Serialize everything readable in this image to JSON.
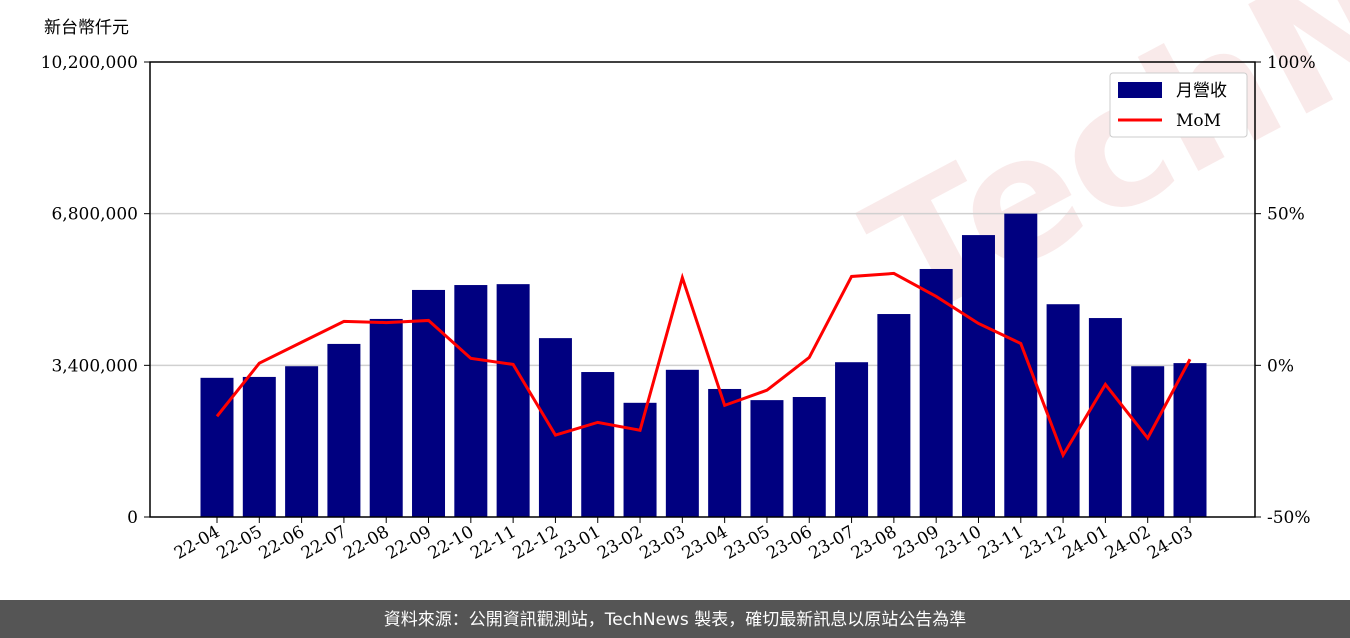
{
  "chart_data": {
    "type": "bar_line",
    "y_label": "新台幣仟元",
    "watermark": "TechNews",
    "footer": "資料來源：公開資訊觀測站，TechNews 製表，確切最新訊息以原站公告為準",
    "categories": [
      "22-04",
      "22-05",
      "22-06",
      "22-07",
      "22-08",
      "22-09",
      "22-10",
      "22-11",
      "22-12",
      "23-01",
      "23-02",
      "23-03",
      "23-04",
      "23-05",
      "23-06",
      "23-07",
      "23-08",
      "23-09",
      "23-10",
      "23-11",
      "23-12",
      "24-01",
      "24-02",
      "24-03"
    ],
    "series": [
      {
        "name": "月營收",
        "type": "bar",
        "color": "#000080",
        "axis": "y",
        "values": [
          3120000,
          3140000,
          3380000,
          3880000,
          4440000,
          5090000,
          5200000,
          5220000,
          4010000,
          3250000,
          2560000,
          3300000,
          2870000,
          2620000,
          2690000,
          3470000,
          4550000,
          5560000,
          6320000,
          6800000,
          4770000,
          4460000,
          3380000,
          3450000
        ]
      },
      {
        "name": "MoM",
        "type": "line",
        "color": "#ff0000",
        "axis": "y2",
        "values": [
          -16.8,
          0.7,
          7.6,
          14.5,
          14.1,
          14.8,
          2.3,
          0.3,
          -23,
          -18.8,
          -21.4,
          28.9,
          -13.2,
          -8.2,
          2.6,
          29.3,
          30.3,
          22.7,
          13.8,
          7.2,
          -29.6,
          -6.3,
          -24,
          2.0
        ]
      }
    ],
    "ylim": [
      0,
      10200000
    ],
    "yticks": [
      0,
      {
        "value": 3400000,
        "label": "3,400,000"
      },
      {
        "value": 6800000,
        "label": "6,800,000"
      },
      {
        "value": 10200000,
        "label": "10,200,000"
      }
    ],
    "y2lim": [
      -50,
      100
    ],
    "y2ticks": [
      {
        "value": -50,
        "label": "-50%"
      },
      {
        "value": 0,
        "label": "0%"
      },
      {
        "value": 50,
        "label": "50%"
      },
      {
        "value": 100,
        "label": "100%"
      }
    ],
    "grid": true,
    "legend": "upper right"
  }
}
